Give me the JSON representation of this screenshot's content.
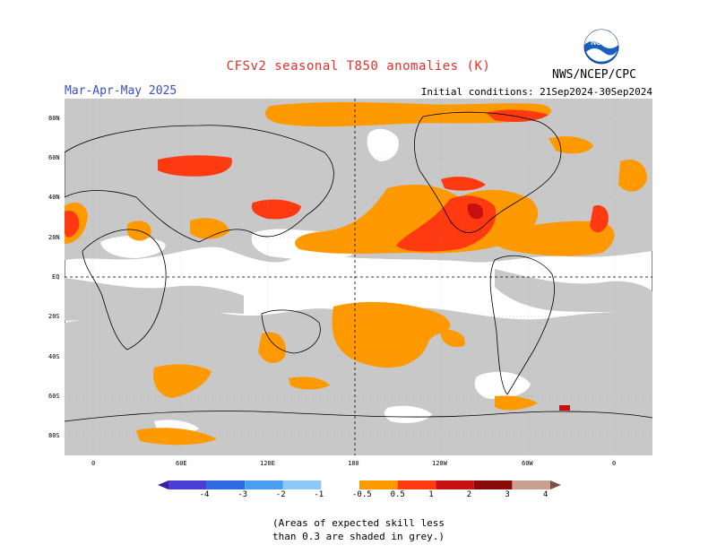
{
  "title": "CFSv2 seasonal T850 anomalies (K)",
  "season": "Mar-Apr-May 2025",
  "initial_conditions": "Initial conditions: 21Sep2024-30Sep2024",
  "organization": "NWS/NCEP/CPC",
  "logo": {
    "text": "NOAA",
    "icon": "noaa-logo"
  },
  "lat_labels": [
    "80N",
    "60N",
    "40N",
    "20N",
    "EQ",
    "20S",
    "40S",
    "60S",
    "80S"
  ],
  "lon_labels": [
    "0",
    "60E",
    "120E",
    "180",
    "120W",
    "60W",
    "0"
  ],
  "colorbar": {
    "labels": [
      "-4",
      "-3",
      "-2",
      "-1",
      "-0.5",
      "0.5",
      "1",
      "2",
      "3",
      "4"
    ],
    "colors": [
      "#3c1fa0",
      "#4a3fd4",
      "#2e6be0",
      "#4a9ef0",
      "#8cc8f8",
      "#ffffff",
      "#ff9900",
      "#ff3a10",
      "#c81010",
      "#8a0a0a",
      "#c8a090",
      "#7a5040"
    ]
  },
  "colors": {
    "grey_skill": "#c8c8c8",
    "orange": "#ff9900",
    "red": "#ff3a10",
    "darkred": "#c81010",
    "pink": "#c8a090"
  },
  "note_line1": "(Areas of expected skill less",
  "note_line2": "than 0.3 are shaded in grey.)"
}
